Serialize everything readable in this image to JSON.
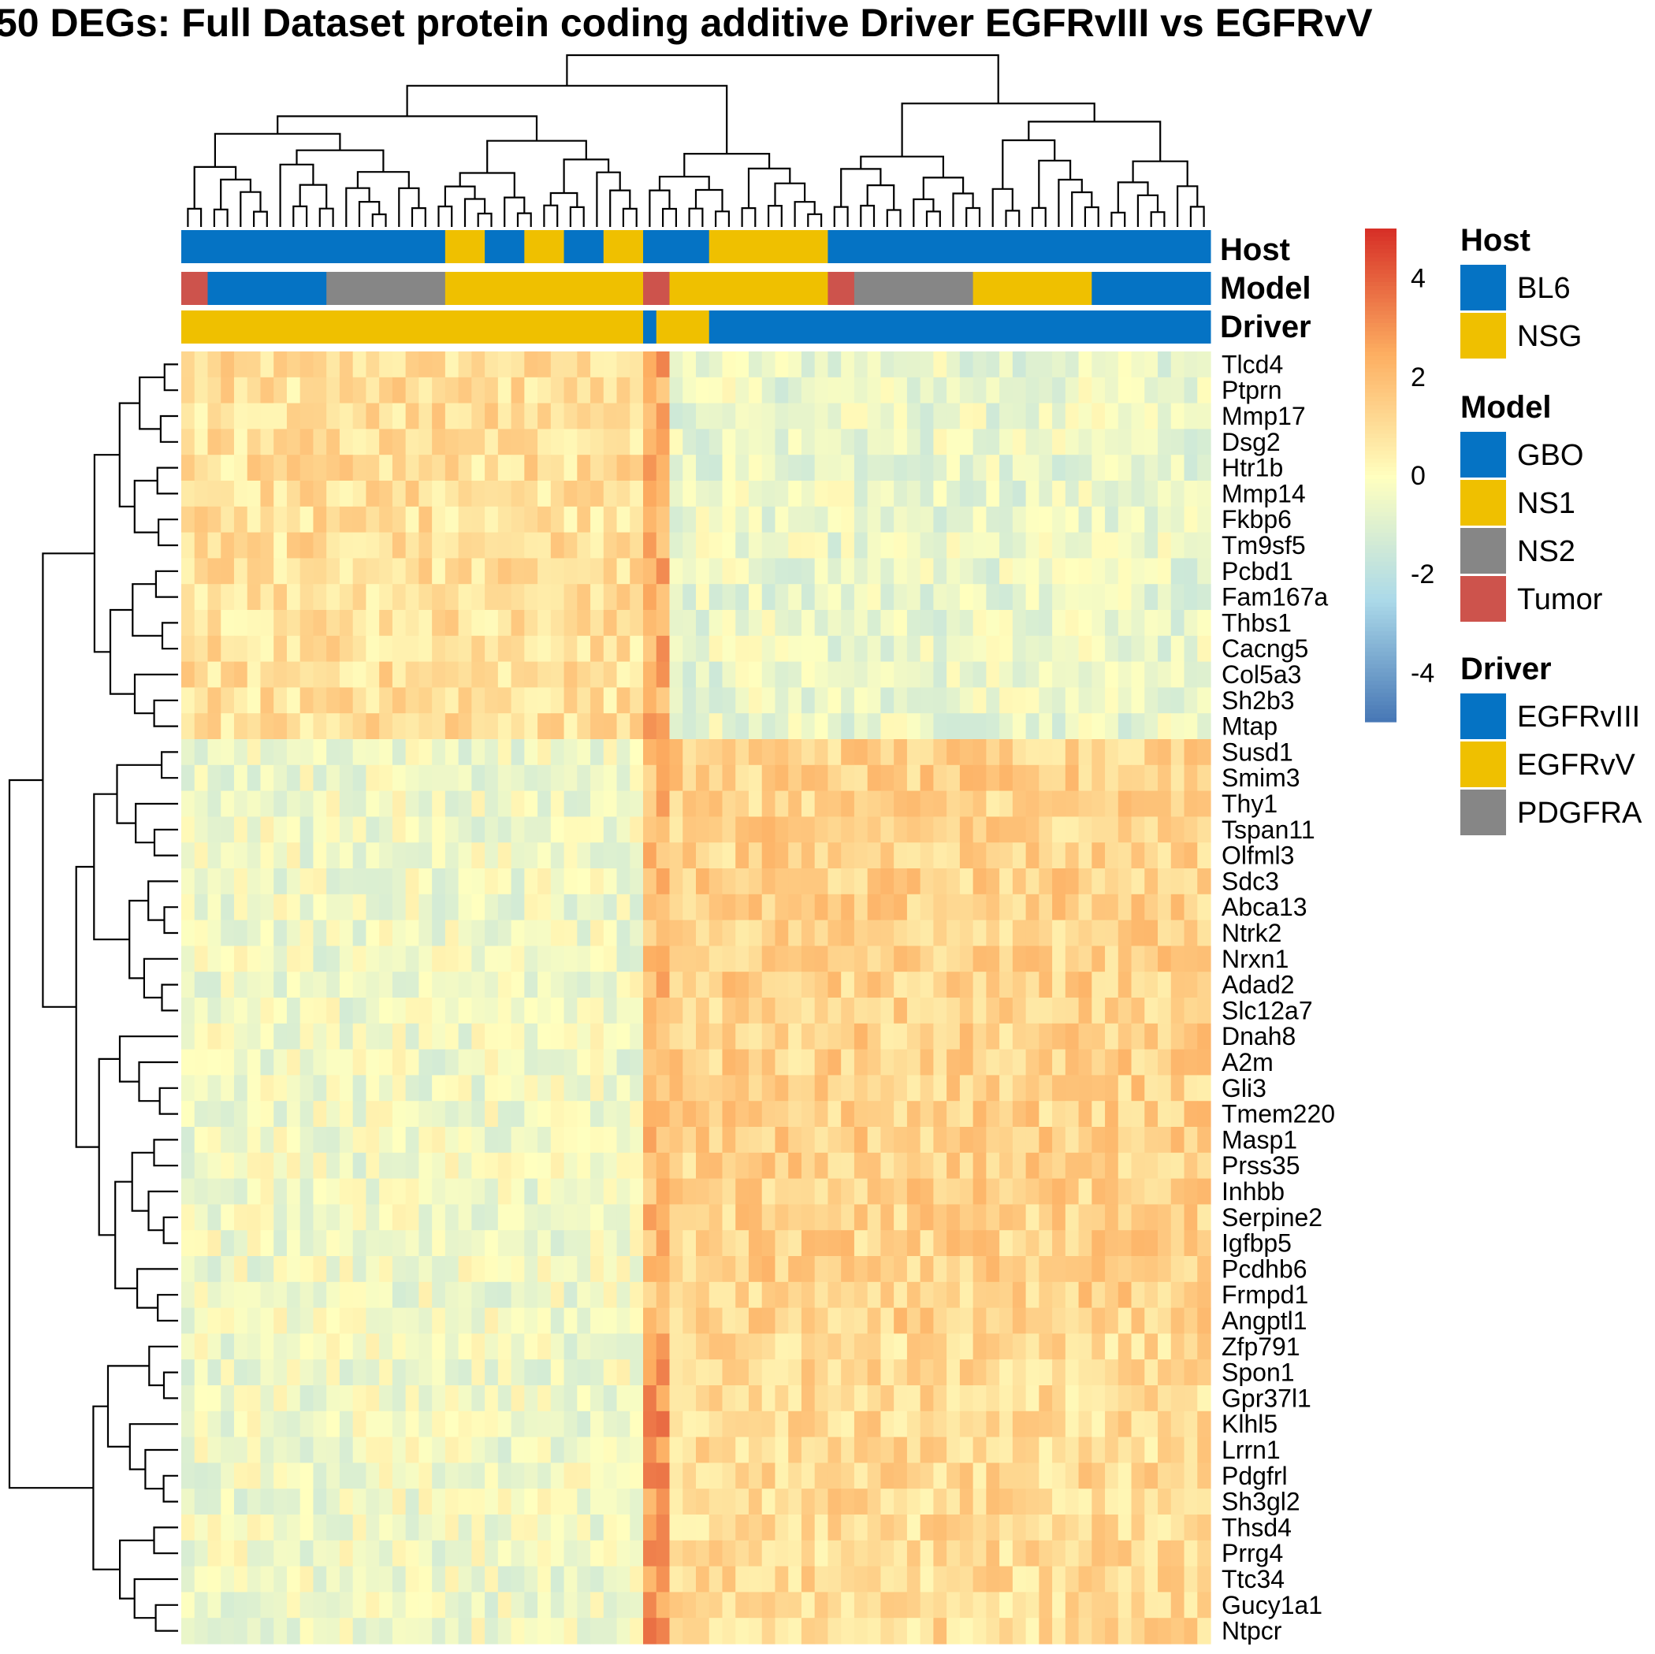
{
  "colors": {
    "blue": "#0573c4",
    "yellow": "#efc000",
    "gray": "#868686",
    "red": "#cd534c"
  },
  "chart_data": {
    "type": "heatmap",
    "title": "50 DEGs: Full Dataset protein coding additive Driver EGFRvIII vs EGFRvV",
    "rows": [
      "Tlcd4",
      "Ptprn",
      "Mmp17",
      "Dsg2",
      "Htr1b",
      "Mmp14",
      "Fkbp6",
      "Tm9sf5",
      "Pcbd1",
      "Fam167a",
      "Thbs1",
      "Cacng5",
      "Col5a3",
      "Sh2b3",
      "Mtap",
      "Susd1",
      "Smim3",
      "Thy1",
      "Tspan11",
      "Olfml3",
      "Sdc3",
      "Abca13",
      "Ntrk2",
      "Nrxn1",
      "Adad2",
      "Slc12a7",
      "Dnah8",
      "A2m",
      "Gli3",
      "Tmem220",
      "Masp1",
      "Prss35",
      "Inhbb",
      "Serpine2",
      "Igfbp5",
      "Pcdhb6",
      "Frmpd1",
      "Angptl1",
      "Zfp791",
      "Spon1",
      "Gpr37l1",
      "Klhl5",
      "Lrrn1",
      "Pdgfrl",
      "Sh3gl2",
      "Thsd4",
      "Prrg4",
      "Ttc34",
      "Gucy1a1",
      "Ntpcr"
    ],
    "n_columns": 78,
    "column_groups": [
      {
        "span": [
          0,
          35
        ],
        "row_block_means": [
          1.0,
          -0.4,
          -0.4
        ]
      },
      {
        "span": [
          35,
          37
        ],
        "row_block_means": [
          2.5,
          2.0,
          3.0
        ]
      },
      {
        "span": [
          37,
          78
        ],
        "row_block_means": [
          -0.6,
          1.4,
          1.1
        ]
      }
    ],
    "row_blocks": [
      [
        0,
        15
      ],
      [
        15,
        38
      ],
      [
        38,
        50
      ]
    ],
    "annotations": {
      "Host": {
        "segments": [
          {
            "start": 0,
            "end": 20,
            "level": "BL6"
          },
          {
            "start": 20,
            "end": 23,
            "level": "NSG"
          },
          {
            "start": 23,
            "end": 26,
            "level": "BL6"
          },
          {
            "start": 26,
            "end": 29,
            "level": "NSG"
          },
          {
            "start": 29,
            "end": 32,
            "level": "BL6"
          },
          {
            "start": 32,
            "end": 35,
            "level": "NSG"
          },
          {
            "start": 35,
            "end": 40,
            "level": "BL6"
          },
          {
            "start": 40,
            "end": 49,
            "level": "NSG"
          },
          {
            "start": 49,
            "end": 78,
            "level": "BL6"
          }
        ]
      },
      "Model": {
        "segments": [
          {
            "start": 0,
            "end": 2,
            "level": "Tumor"
          },
          {
            "start": 2,
            "end": 11,
            "level": "GBO"
          },
          {
            "start": 11,
            "end": 20,
            "level": "NS2"
          },
          {
            "start": 20,
            "end": 35,
            "level": "NS1"
          },
          {
            "start": 35,
            "end": 37,
            "level": "Tumor"
          },
          {
            "start": 37,
            "end": 49,
            "level": "NS1"
          },
          {
            "start": 49,
            "end": 51,
            "level": "Tumor"
          },
          {
            "start": 51,
            "end": 60,
            "level": "NS2"
          },
          {
            "start": 60,
            "end": 69,
            "level": "NS1"
          },
          {
            "start": 69,
            "end": 78,
            "level": "GBO"
          }
        ]
      },
      "Driver": {
        "segments": [
          {
            "start": 0,
            "end": 35,
            "level": "EGFRvV"
          },
          {
            "start": 35,
            "end": 36,
            "level": "EGFRvIII"
          },
          {
            "start": 36,
            "end": 40,
            "level": "EGFRvV"
          },
          {
            "start": 40,
            "end": 78,
            "level": "EGFRvIII"
          }
        ]
      }
    },
    "color_scale": {
      "min": -5,
      "max": 5,
      "ticks": [
        4,
        2,
        0,
        -2,
        -4
      ],
      "stops": [
        "#4575b4",
        "#abd9e9",
        "#ffffbf",
        "#fdae61",
        "#d73027"
      ]
    }
  },
  "annotation_labels": {
    "host": "Host",
    "model": "Model",
    "driver": "Driver"
  },
  "legend": {
    "host": {
      "title": "Host",
      "items": [
        {
          "label": "BL6",
          "color": "#0573c4"
        },
        {
          "label": "NSG",
          "color": "#efc000"
        }
      ]
    },
    "model": {
      "title": "Model",
      "items": [
        {
          "label": "GBO",
          "color": "#0573c4"
        },
        {
          "label": "NS1",
          "color": "#efc000"
        },
        {
          "label": "NS2",
          "color": "#868686"
        },
        {
          "label": "Tumor",
          "color": "#cd534c"
        }
      ]
    },
    "driver": {
      "title": "Driver",
      "items": [
        {
          "label": "EGFRvIII",
          "color": "#0573c4"
        },
        {
          "label": "EGFRvV",
          "color": "#efc000"
        },
        {
          "label": "PDGFRA",
          "color": "#868686"
        }
      ]
    }
  }
}
